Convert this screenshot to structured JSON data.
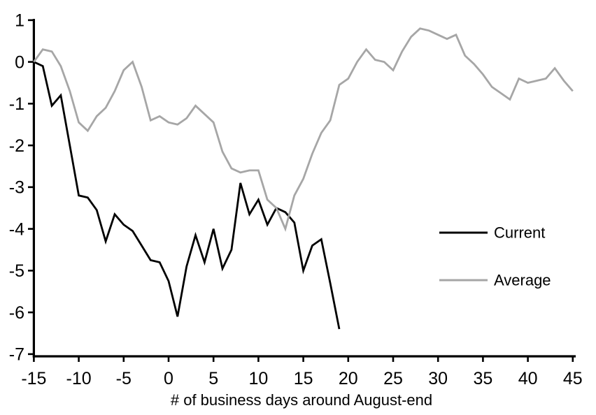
{
  "figure": {
    "background": "#ffffff",
    "axis_color": "#000000"
  },
  "chart_data": {
    "type": "line",
    "title": "",
    "xlabel": "# of business days around August-end",
    "ylabel": "",
    "xlim": [
      -15,
      45
    ],
    "ylim": [
      -7,
      1
    ],
    "x_ticks": [
      -15,
      -10,
      -5,
      0,
      5,
      10,
      15,
      20,
      25,
      30,
      35,
      40,
      45
    ],
    "y_ticks": [
      1,
      0,
      -1,
      -2,
      -3,
      -4,
      -5,
      -6,
      -7
    ],
    "grid": false,
    "legend_position": "middle-right",
    "series": [
      {
        "name": "Current",
        "color": "#000000",
        "x": [
          -15,
          -14,
          -13,
          -12,
          -11,
          -10,
          -9,
          -8,
          -7,
          -6,
          -5,
          -4,
          -3,
          -2,
          -1,
          0,
          1,
          2,
          3,
          4,
          5,
          6,
          7,
          8,
          9,
          10,
          11,
          12,
          13,
          14,
          15,
          16,
          17,
          18,
          19
        ],
        "values": [
          0,
          -0.1,
          -1.05,
          -0.8,
          -2.0,
          -3.2,
          -3.25,
          -3.55,
          -4.3,
          -3.65,
          -3.9,
          -4.05,
          -4.4,
          -4.75,
          -4.8,
          -5.25,
          -6.1,
          -4.9,
          -4.15,
          -4.8,
          -4.0,
          -4.95,
          -4.5,
          -2.9,
          -3.65,
          -3.3,
          -3.9,
          -3.5,
          -3.6,
          -3.85,
          -5.0,
          -4.4,
          -4.25,
          -5.3,
          -6.4
        ]
      },
      {
        "name": "Average",
        "color": "#a6a6a6",
        "x": [
          -15,
          -14,
          -13,
          -12,
          -11,
          -10,
          -9,
          -8,
          -7,
          -6,
          -5,
          -4,
          -3,
          -2,
          -1,
          0,
          1,
          2,
          3,
          4,
          5,
          6,
          7,
          8,
          9,
          10,
          11,
          12,
          13,
          14,
          15,
          16,
          17,
          18,
          19,
          20,
          21,
          22,
          23,
          24,
          25,
          26,
          27,
          28,
          29,
          30,
          31,
          32,
          33,
          34,
          35,
          36,
          37,
          38,
          39,
          40,
          41,
          42,
          43,
          44,
          45
        ],
        "values": [
          0,
          0.3,
          0.25,
          -0.1,
          -0.7,
          -1.45,
          -1.65,
          -1.3,
          -1.1,
          -0.7,
          -0.2,
          0.0,
          -0.6,
          -1.4,
          -1.3,
          -1.45,
          -1.5,
          -1.35,
          -1.05,
          -1.25,
          -1.45,
          -2.15,
          -2.55,
          -2.65,
          -2.6,
          -2.6,
          -3.3,
          -3.5,
          -4.0,
          -3.2,
          -2.8,
          -2.2,
          -1.7,
          -1.4,
          -0.55,
          -0.4,
          0.0,
          0.3,
          0.05,
          0.0,
          -0.2,
          0.25,
          0.6,
          0.8,
          0.75,
          0.65,
          0.55,
          0.65,
          0.15,
          -0.05,
          -0.3,
          -0.6,
          -0.75,
          -0.9,
          -0.4,
          -0.5,
          -0.45,
          -0.4,
          -0.15,
          -0.45,
          -0.7
        ]
      }
    ]
  }
}
